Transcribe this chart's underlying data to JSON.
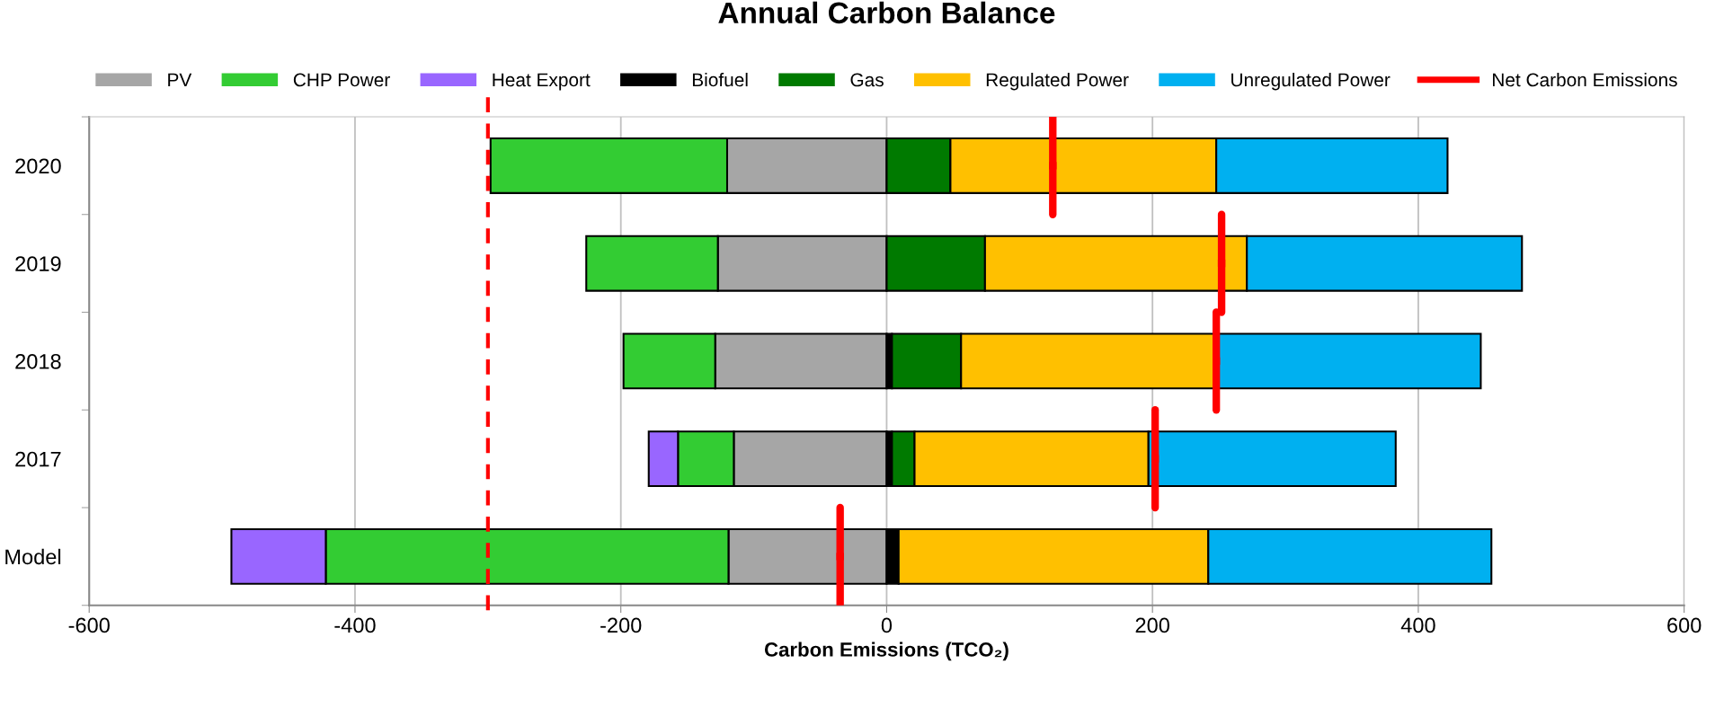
{
  "chart_data": {
    "type": "bar",
    "orientation": "horizontal",
    "stacked": true,
    "title": "Annual Carbon Balance",
    "xlabel": "Carbon Emissions (TCO₂)",
    "categories": [
      "2020",
      "2019",
      "2018",
      "2017",
      "Model"
    ],
    "series": [
      {
        "name": "PV",
        "color": "#a6a6a6",
        "values": [
          -120,
          -127,
          -129,
          -115,
          -119
        ]
      },
      {
        "name": "CHP Power",
        "color": "#33cc33",
        "values": [
          -178,
          -99,
          -69,
          -42,
          -303
        ]
      },
      {
        "name": "Heat Export",
        "color": "#9966ff",
        "values": [
          0,
          0,
          0,
          -22,
          -71
        ]
      },
      {
        "name": "Biofuel",
        "color": "#000000",
        "values": [
          0,
          0,
          4,
          4,
          9
        ]
      },
      {
        "name": "Gas",
        "color": "#007a00",
        "values": [
          48,
          74,
          52,
          17,
          0
        ]
      },
      {
        "name": "Regulated Power",
        "color": "#ffc000",
        "values": [
          200,
          197,
          192,
          176,
          233
        ]
      },
      {
        "name": "Unregulated Power",
        "color": "#00b0f0",
        "values": [
          174,
          207,
          199,
          186,
          213
        ]
      },
      {
        "name": "Net Carbon Emissions",
        "type": "scatter",
        "color": "#ff0000",
        "values": [
          125,
          252,
          248,
          202,
          -35
        ]
      }
    ],
    "ref_lines": [
      {
        "axis": "x",
        "value": -300,
        "color": "#ff0000",
        "line_style": "dashed"
      }
    ],
    "xlim": [
      -600,
      600
    ],
    "xticks": [
      -600,
      -400,
      -200,
      0,
      200,
      400,
      600
    ],
    "grid": "x",
    "legend": "top"
  }
}
